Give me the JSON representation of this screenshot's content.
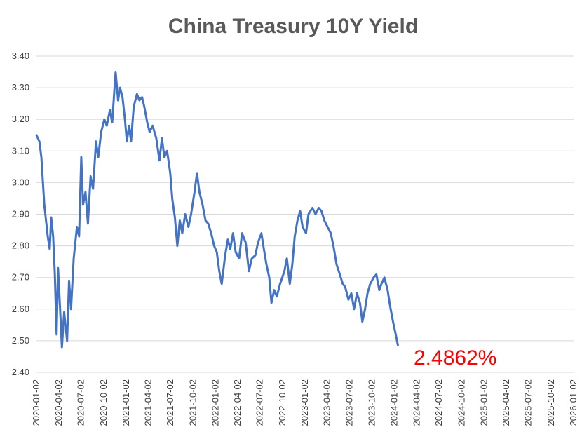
{
  "chart_data": {
    "type": "line",
    "title": "China Treasury 10Y Yield",
    "xlabel": "",
    "ylabel": "",
    "ylim": [
      2.4,
      3.4
    ],
    "xlim": [
      "2020-01-02",
      "2026-01-02"
    ],
    "grid": "horizontal",
    "y_ticks": [
      "2.40",
      "2.50",
      "2.60",
      "2.70",
      "2.80",
      "2.90",
      "3.00",
      "3.10",
      "3.20",
      "3.30",
      "3.40"
    ],
    "x_ticks": [
      "2020-01-02",
      "2020-04-02",
      "2020-07-02",
      "2020-10-02",
      "2021-01-02",
      "2021-04-02",
      "2021-07-02",
      "2021-10-02",
      "2022-01-02",
      "2022-04-02",
      "2022-07-02",
      "2022-10-02",
      "2023-01-02",
      "2023-04-02",
      "2023-07-02",
      "2023-10-02",
      "2024-01-02",
      "2024-04-02",
      "2024-07-02",
      "2024-10-02",
      "2025-01-02",
      "2025-04-02",
      "2025-07-02",
      "2025-10-02",
      "2026-01-02"
    ],
    "annotation": "2.4862%",
    "series_color": "#4472c4",
    "annotation_color": "#ff0000",
    "series": [
      {
        "points": [
          [
            "2020-01-02",
            3.15
          ],
          [
            "2020-01-14",
            3.13
          ],
          [
            "2020-01-22",
            3.08
          ],
          [
            "2020-02-03",
            2.93
          ],
          [
            "2020-02-17",
            2.83
          ],
          [
            "2020-02-25",
            2.79
          ],
          [
            "2020-03-02",
            2.89
          ],
          [
            "2020-03-10",
            2.83
          ],
          [
            "2020-03-17",
            2.71
          ],
          [
            "2020-03-24",
            2.52
          ],
          [
            "2020-03-30",
            2.73
          ],
          [
            "2020-04-07",
            2.61
          ],
          [
            "2020-04-15",
            2.48
          ],
          [
            "2020-04-24",
            2.59
          ],
          [
            "2020-05-06",
            2.5
          ],
          [
            "2020-05-14",
            2.69
          ],
          [
            "2020-05-22",
            2.6
          ],
          [
            "2020-06-02",
            2.76
          ],
          [
            "2020-06-15",
            2.86
          ],
          [
            "2020-06-24",
            2.83
          ],
          [
            "2020-07-03",
            3.08
          ],
          [
            "2020-07-10",
            2.93
          ],
          [
            "2020-07-20",
            2.97
          ],
          [
            "2020-07-30",
            2.87
          ],
          [
            "2020-08-10",
            3.02
          ],
          [
            "2020-08-20",
            2.98
          ],
          [
            "2020-09-01",
            3.13
          ],
          [
            "2020-09-10",
            3.08
          ],
          [
            "2020-09-22",
            3.16
          ],
          [
            "2020-10-05",
            3.2
          ],
          [
            "2020-10-15",
            3.18
          ],
          [
            "2020-10-28",
            3.23
          ],
          [
            "2020-11-06",
            3.19
          ],
          [
            "2020-11-20",
            3.35
          ],
          [
            "2020-11-30",
            3.26
          ],
          [
            "2020-12-08",
            3.3
          ],
          [
            "2020-12-18",
            3.27
          ],
          [
            "2020-12-28",
            3.2
          ],
          [
            "2021-01-05",
            3.13
          ],
          [
            "2021-01-14",
            3.18
          ],
          [
            "2021-01-22",
            3.13
          ],
          [
            "2021-02-02",
            3.24
          ],
          [
            "2021-02-15",
            3.28
          ],
          [
            "2021-02-25",
            3.26
          ],
          [
            "2021-03-08",
            3.27
          ],
          [
            "2021-03-17",
            3.24
          ],
          [
            "2021-03-29",
            3.19
          ],
          [
            "2021-04-08",
            3.16
          ],
          [
            "2021-04-20",
            3.18
          ],
          [
            "2021-05-05",
            3.14
          ],
          [
            "2021-05-18",
            3.07
          ],
          [
            "2021-05-28",
            3.14
          ],
          [
            "2021-06-07",
            3.08
          ],
          [
            "2021-06-18",
            3.1
          ],
          [
            "2021-07-01",
            3.03
          ],
          [
            "2021-07-09",
            2.95
          ],
          [
            "2021-07-20",
            2.89
          ],
          [
            "2021-07-30",
            2.8
          ],
          [
            "2021-08-09",
            2.88
          ],
          [
            "2021-08-19",
            2.84
          ],
          [
            "2021-08-31",
            2.9
          ],
          [
            "2021-09-13",
            2.86
          ],
          [
            "2021-09-24",
            2.9
          ],
          [
            "2021-10-08",
            2.97
          ],
          [
            "2021-10-18",
            3.03
          ],
          [
            "2021-10-28",
            2.97
          ],
          [
            "2021-11-10",
            2.93
          ],
          [
            "2021-11-22",
            2.88
          ],
          [
            "2021-12-03",
            2.87
          ],
          [
            "2021-12-15",
            2.84
          ],
          [
            "2021-12-27",
            2.8
          ],
          [
            "2022-01-07",
            2.78
          ],
          [
            "2022-01-17",
            2.72
          ],
          [
            "2022-01-27",
            2.68
          ],
          [
            "2022-02-10",
            2.77
          ],
          [
            "2022-02-21",
            2.82
          ],
          [
            "2022-03-03",
            2.79
          ],
          [
            "2022-03-14",
            2.84
          ],
          [
            "2022-03-25",
            2.78
          ],
          [
            "2022-04-08",
            2.76
          ],
          [
            "2022-04-20",
            2.84
          ],
          [
            "2022-05-05",
            2.81
          ],
          [
            "2022-05-18",
            2.72
          ],
          [
            "2022-05-30",
            2.76
          ],
          [
            "2022-06-13",
            2.77
          ],
          [
            "2022-06-24",
            2.81
          ],
          [
            "2022-07-08",
            2.84
          ],
          [
            "2022-07-18",
            2.79
          ],
          [
            "2022-07-29",
            2.74
          ],
          [
            "2022-08-09",
            2.7
          ],
          [
            "2022-08-18",
            2.62
          ],
          [
            "2022-08-29",
            2.66
          ],
          [
            "2022-09-09",
            2.64
          ],
          [
            "2022-09-22",
            2.68
          ],
          [
            "2022-10-10",
            2.72
          ],
          [
            "2022-10-20",
            2.76
          ],
          [
            "2022-11-01",
            2.68
          ],
          [
            "2022-11-11",
            2.74
          ],
          [
            "2022-11-21",
            2.83
          ],
          [
            "2022-12-02",
            2.88
          ],
          [
            "2022-12-13",
            2.91
          ],
          [
            "2022-12-23",
            2.86
          ],
          [
            "2023-01-06",
            2.84
          ],
          [
            "2023-01-16",
            2.9
          ],
          [
            "2023-02-01",
            2.92
          ],
          [
            "2023-02-14",
            2.9
          ],
          [
            "2023-02-27",
            2.92
          ],
          [
            "2023-03-10",
            2.91
          ],
          [
            "2023-03-22",
            2.88
          ],
          [
            "2023-04-04",
            2.86
          ],
          [
            "2023-04-17",
            2.84
          ],
          [
            "2023-04-28",
            2.8
          ],
          [
            "2023-05-11",
            2.74
          ],
          [
            "2023-05-24",
            2.71
          ],
          [
            "2023-06-05",
            2.68
          ],
          [
            "2023-06-15",
            2.67
          ],
          [
            "2023-06-28",
            2.63
          ],
          [
            "2023-07-10",
            2.65
          ],
          [
            "2023-07-21",
            2.6
          ],
          [
            "2023-08-02",
            2.65
          ],
          [
            "2023-08-14",
            2.62
          ],
          [
            "2023-08-24",
            2.56
          ],
          [
            "2023-09-04",
            2.6
          ],
          [
            "2023-09-14",
            2.65
          ],
          [
            "2023-09-25",
            2.68
          ],
          [
            "2023-10-09",
            2.7
          ],
          [
            "2023-10-20",
            2.71
          ],
          [
            "2023-11-01",
            2.66
          ],
          [
            "2023-11-10",
            2.68
          ],
          [
            "2023-11-22",
            2.7
          ],
          [
            "2023-12-05",
            2.66
          ],
          [
            "2023-12-15",
            2.61
          ],
          [
            "2023-12-27",
            2.56
          ],
          [
            "2024-01-10",
            2.51
          ],
          [
            "2024-01-16",
            2.4862
          ]
        ]
      }
    ]
  }
}
